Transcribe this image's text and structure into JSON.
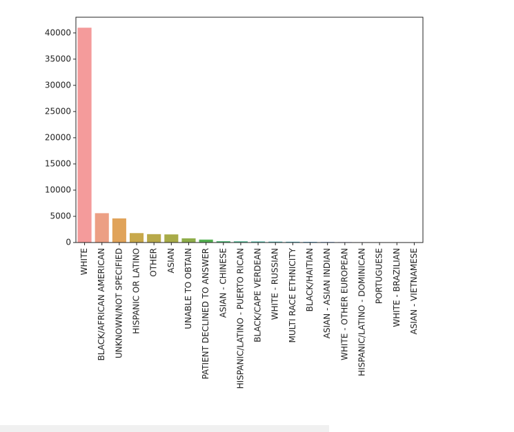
{
  "chart_data": {
    "type": "bar",
    "title": "",
    "xlabel": "",
    "ylabel": "",
    "ylim": [
      0,
      43000
    ],
    "yticks": [
      0,
      5000,
      10000,
      15000,
      20000,
      25000,
      30000,
      35000,
      40000
    ],
    "grid": false,
    "categories": [
      "WHITE",
      "BLACK/AFRICAN AMERICAN",
      "UNKNOWN/NOT SPECIFIED",
      "HISPANIC OR LATINO",
      "OTHER",
      "ASIAN",
      "UNABLE TO OBTAIN",
      "PATIENT DECLINED TO ANSWER",
      "ASIAN - CHINESE",
      "HISPANIC/LATINO - PUERTO RICAN",
      "BLACK/CAPE VERDEAN",
      "WHITE - RUSSIAN",
      "MULTI RACE ETHNICITY",
      "BLACK/HAITIAN",
      "ASIAN - ASIAN INDIAN",
      "WHITE - OTHER EUROPEAN",
      "HISPANIC/LATINO - DOMINICAN",
      "PORTUGUESE",
      "WHITE - BRAZILIAN",
      "ASIAN - VIETNAMESE"
    ],
    "values": [
      41000,
      5600,
      4600,
      1800,
      1600,
      1550,
      800,
      560,
      250,
      230,
      200,
      170,
      150,
      130,
      110,
      85,
      70,
      60,
      50,
      45
    ],
    "colors": [
      "#f49b9b",
      "#ec9f84",
      "#e0a35a",
      "#c8a84b",
      "#b8a94a",
      "#a8ab48",
      "#8fad4a",
      "#52b050",
      "#4ab472",
      "#48b48e",
      "#47b3a1",
      "#49b2b2",
      "#4bb0c3",
      "#55aedc",
      "#6ea6ec",
      "#9a9bf0",
      "#b88ff0",
      "#d68ae8",
      "#ea8bd8",
      "#f28fc0"
    ]
  },
  "scrollbar": {
    "label": ""
  }
}
